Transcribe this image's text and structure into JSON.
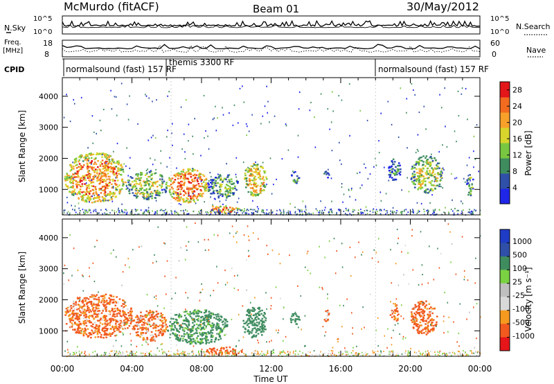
{
  "header": {
    "station": "McMurdo (fitACF)",
    "beam": "Beam 01",
    "date": "30/May/2012"
  },
  "top_panels": {
    "left_label_1": "N.Sky",
    "left_label_2": "Freq.",
    "left_label_2_unit": "[MHz]",
    "left_label_3": "CPID",
    "right_label_1": "N.Search",
    "right_label_2": "Nave",
    "noise_ticks": [
      "10^5",
      "10^0"
    ],
    "freq_ticks": [
      "18",
      "8"
    ],
    "nave_ticks": [
      "60",
      "0"
    ],
    "cpid_labels": [
      {
        "text": "normalsound (fast) 157 RF",
        "hour": 0.1
      },
      {
        "text": "themis 3300 RF",
        "hour": 6.3
      },
      {
        "text": "normalsound (fast) 157 RF",
        "hour": 18.0
      }
    ]
  },
  "colors": {
    "power_scale": [
      "#1f26e8",
      "#2f4fa8",
      "#3f8c5f",
      "#79c741",
      "#d8d52d",
      "#f7a12b",
      "#f26b1f",
      "#e3161a"
    ],
    "velocity_scale": [
      "#e5151a",
      "#f1591f",
      "#f59a1f",
      "#d9d9d9",
      "#bfbfbf",
      "#7ad142",
      "#3f8c5f",
      "#2f4fa8",
      "#1f3cc5"
    ],
    "axis": "#000000"
  },
  "chart_data": [
    {
      "type": "heatmap",
      "name": "power",
      "xlabel": "",
      "ylabel": "Slant Range [km]",
      "xlim": [
        0,
        24
      ],
      "ylim": [
        180,
        4600
      ],
      "yticks": [
        "1000",
        "2000",
        "3000",
        "4000"
      ],
      "colorbar_label": "Power [dB]",
      "colorbar_ticks": [
        "4",
        "8",
        "12",
        "16",
        "20",
        "24",
        "28"
      ],
      "colorbar_range": [
        0,
        30
      ],
      "features": [
        {
          "t0": 0.1,
          "t1": 3.6,
          "r0": 600,
          "r1": 2200,
          "value": 22
        },
        {
          "t0": 3.6,
          "t1": 6.0,
          "r0": 700,
          "r1": 1600,
          "value": 15
        },
        {
          "t0": 6.0,
          "t1": 8.3,
          "r0": 600,
          "r1": 1700,
          "value": 24
        },
        {
          "t0": 8.3,
          "t1": 10.1,
          "r0": 750,
          "r1": 1500,
          "value": 12
        },
        {
          "t0": 10.4,
          "t1": 11.7,
          "r0": 800,
          "r1": 1900,
          "value": 20
        },
        {
          "t0": 13.1,
          "t1": 13.6,
          "r0": 1200,
          "r1": 1600,
          "value": 10
        },
        {
          "t0": 15.0,
          "t1": 15.3,
          "r0": 1300,
          "r1": 1700,
          "value": 8
        },
        {
          "t0": 18.7,
          "t1": 19.4,
          "r0": 1300,
          "r1": 2000,
          "value": 9
        },
        {
          "t0": 20.0,
          "t1": 21.8,
          "r0": 900,
          "r1": 2100,
          "value": 16
        },
        {
          "t0": 23.2,
          "t1": 23.6,
          "r0": 800,
          "r1": 1500,
          "value": 12
        },
        {
          "t0": 8.2,
          "t1": 10.3,
          "r0": 250,
          "r1": 500,
          "value": 22
        }
      ]
    },
    {
      "type": "heatmap",
      "name": "velocity",
      "xlabel": "Time UT",
      "ylabel": "Slant Range [km]",
      "xlim": [
        0,
        24
      ],
      "ylim": [
        180,
        4600
      ],
      "xticks": [
        "00:00",
        "04:00",
        "08:00",
        "12:00",
        "16:00",
        "20:00",
        "00:00"
      ],
      "yticks": [
        "1000",
        "2000",
        "3000",
        "4000"
      ],
      "colorbar_label": "Velocity [m s⁻¹]",
      "colorbar_ticks": [
        "1000",
        "500",
        "100",
        "25",
        "-25",
        "-100",
        "-500",
        "-1000"
      ],
      "features": [
        {
          "t0": 0.1,
          "t1": 4.0,
          "r0": 800,
          "r1": 2200,
          "value": -150
        },
        {
          "t0": 4.0,
          "t1": 6.0,
          "r0": 700,
          "r1": 1700,
          "value": -120
        },
        {
          "t0": 6.0,
          "t1": 9.5,
          "r0": 600,
          "r1": 1700,
          "value": 200
        },
        {
          "t0": 10.3,
          "t1": 11.7,
          "r0": 800,
          "r1": 1800,
          "value": 250
        },
        {
          "t0": 13.0,
          "t1": 13.6,
          "r0": 1200,
          "r1": 1600,
          "value": 300
        },
        {
          "t0": 15.0,
          "t1": 15.3,
          "r0": 1300,
          "r1": 1700,
          "value": -100
        },
        {
          "t0": 18.8,
          "t1": 19.3,
          "r0": 1300,
          "r1": 1900,
          "value": -150
        },
        {
          "t0": 20.0,
          "t1": 21.5,
          "r0": 900,
          "r1": 2000,
          "value": -200
        },
        {
          "t0": 8.2,
          "t1": 10.3,
          "r0": 250,
          "r1": 500,
          "value": -300
        }
      ]
    }
  ]
}
